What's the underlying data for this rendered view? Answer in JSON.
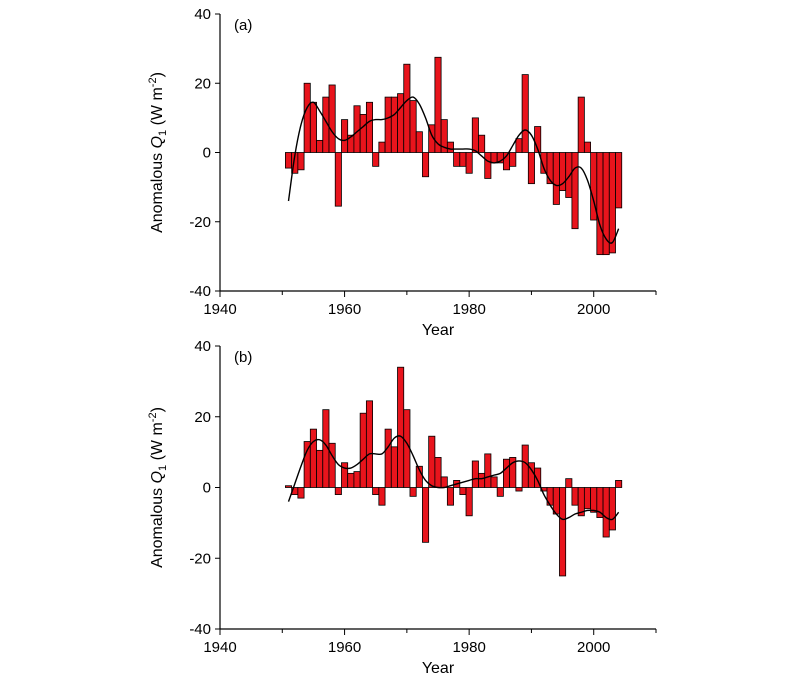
{
  "chart_data": [
    {
      "type": "bar",
      "panel_label": "(a)",
      "xlabel": "Year",
      "ylabel": "Anomalous Q₁ (W m⁻²)",
      "ylabel_parts": {
        "prefix": "Anomalous ",
        "symbol": "Q",
        "subscript": "1",
        "units_open": " (W m",
        "units_exp": "-2",
        "units_close": ")"
      },
      "xlim": [
        1940,
        2010
      ],
      "ylim": [
        -40,
        40
      ],
      "xticks": [
        1940,
        1960,
        1980,
        2000
      ],
      "yticks": [
        -40,
        -20,
        0,
        20,
        40
      ],
      "xtick_labels": [
        "1940",
        "1960",
        "1980",
        "2000"
      ],
      "ytick_labels": [
        "-40",
        "-20",
        "0",
        "20",
        "40"
      ],
      "grid": false,
      "bar_color": "#e8141c",
      "x": [
        1951,
        1952,
        1953,
        1954,
        1955,
        1956,
        1957,
        1958,
        1959,
        1960,
        1961,
        1962,
        1963,
        1964,
        1965,
        1966,
        1967,
        1968,
        1969,
        1970,
        1971,
        1972,
        1973,
        1974,
        1975,
        1976,
        1977,
        1978,
        1979,
        1980,
        1981,
        1982,
        1983,
        1984,
        1985,
        1986,
        1987,
        1988,
        1989,
        1990,
        1991,
        1992,
        1993,
        1994,
        1995,
        1996,
        1997,
        1998,
        1999,
        2000,
        2001,
        2002,
        2003,
        2004
      ],
      "values": [
        -4.5,
        -6,
        -5,
        20,
        14.5,
        3.5,
        16,
        19.5,
        -15.5,
        9.5,
        5,
        13.5,
        11,
        14.5,
        -4,
        3,
        16,
        16,
        17,
        25.5,
        15,
        6,
        -7,
        8,
        27.5,
        9.5,
        3,
        -4,
        -4,
        -6,
        10,
        5,
        -7.5,
        -3,
        -3,
        -5,
        -4,
        4,
        22.5,
        -9,
        7.5,
        -6,
        -9,
        -15,
        -11,
        -13,
        -22,
        16,
        3,
        -19.5,
        -29.5,
        -29.5,
        -29,
        -16
      ],
      "smooth_x": [
        1951,
        1952,
        1953,
        1954,
        1955,
        1956,
        1957,
        1958,
        1959,
        1960,
        1961,
        1962,
        1963,
        1964,
        1965,
        1966,
        1967,
        1968,
        1969,
        1970,
        1971,
        1972,
        1973,
        1974,
        1975,
        1976,
        1977,
        1978,
        1979,
        1980,
        1981,
        1982,
        1983,
        1984,
        1985,
        1986,
        1987,
        1988,
        1989,
        1990,
        1991,
        1992,
        1993,
        1994,
        1995,
        1996,
        1997,
        1998,
        1999,
        2000,
        2001,
        2002,
        2003,
        2004
      ],
      "smooth_y": [
        -14,
        -1,
        8,
        13,
        14.5,
        12,
        9,
        6,
        4,
        3.5,
        4.5,
        6,
        7.5,
        9,
        9.5,
        9.5,
        10,
        11,
        13,
        15,
        16,
        14,
        10,
        5,
        2.5,
        1.5,
        1,
        1,
        1,
        1,
        0.5,
        -1,
        -2.5,
        -3,
        -2.5,
        -1,
        2,
        5,
        6.5,
        5,
        1,
        -4.5,
        -8,
        -9.5,
        -9,
        -7,
        -4.5,
        -4.5,
        -8,
        -14,
        -21,
        -25,
        -26,
        -22
      ]
    },
    {
      "type": "bar",
      "panel_label": "(b)",
      "xlabel": "Year",
      "ylabel": "Anomalous Q₁ (W m⁻²)",
      "ylabel_parts": {
        "prefix": "Anomalous ",
        "symbol": "Q",
        "subscript": "1",
        "units_open": " (W m",
        "units_exp": "-2",
        "units_close": ")"
      },
      "xlim": [
        1940,
        2010
      ],
      "ylim": [
        -40,
        40
      ],
      "xticks": [
        1940,
        1960,
        1980,
        2000
      ],
      "yticks": [
        -40,
        -20,
        0,
        20,
        40
      ],
      "xtick_labels": [
        "1940",
        "1960",
        "1980",
        "2000"
      ],
      "ytick_labels": [
        "-40",
        "-20",
        "0",
        "20",
        "40"
      ],
      "grid": false,
      "bar_color": "#e8141c",
      "x": [
        1951,
        1952,
        1953,
        1954,
        1955,
        1956,
        1957,
        1958,
        1959,
        1960,
        1961,
        1962,
        1963,
        1964,
        1965,
        1966,
        1967,
        1968,
        1969,
        1970,
        1971,
        1972,
        1973,
        1974,
        1975,
        1976,
        1977,
        1978,
        1979,
        1980,
        1981,
        1982,
        1983,
        1984,
        1985,
        1986,
        1987,
        1988,
        1989,
        1990,
        1991,
        1992,
        1993,
        1994,
        1995,
        1996,
        1997,
        1998,
        1999,
        2000,
        2001,
        2002,
        2003,
        2004
      ],
      "values": [
        0.5,
        -2,
        -3,
        13,
        16.5,
        10.5,
        22,
        12.5,
        -2,
        7,
        4,
        4.5,
        21,
        24.5,
        -2,
        -5,
        16.5,
        11.5,
        34,
        22,
        -2.5,
        6,
        -15.5,
        14.5,
        8.5,
        3,
        -5,
        2,
        -2,
        -8,
        7.5,
        4,
        9.5,
        3,
        -2.5,
        8,
        8.5,
        -1,
        12,
        7,
        5.5,
        -1,
        -5,
        -7.5,
        -25,
        2.5,
        -5,
        -8,
        -6,
        -7,
        -8.5,
        -14,
        -12,
        2
      ],
      "smooth_x": [
        1951,
        1952,
        1953,
        1954,
        1955,
        1956,
        1957,
        1958,
        1959,
        1960,
        1961,
        1962,
        1963,
        1964,
        1965,
        1966,
        1967,
        1968,
        1969,
        1970,
        1971,
        1972,
        1973,
        1974,
        1975,
        1976,
        1977,
        1978,
        1979,
        1980,
        1981,
        1982,
        1983,
        1984,
        1985,
        1986,
        1987,
        1988,
        1989,
        1990,
        1991,
        1992,
        1993,
        1994,
        1995,
        1996,
        1997,
        1998,
        1999,
        2000,
        2001,
        2002,
        2003,
        2004
      ],
      "smooth_y": [
        -4,
        1,
        6,
        10.5,
        13,
        13.5,
        12,
        9,
        6.5,
        5.5,
        5.5,
        6.5,
        8,
        9.5,
        9.5,
        9.5,
        11.5,
        14,
        14.5,
        12.5,
        9,
        5,
        2,
        0.5,
        0,
        0,
        0.5,
        1,
        1.5,
        2,
        2.5,
        2.5,
        3,
        3.5,
        4,
        5.5,
        7,
        7.5,
        7,
        5,
        2,
        -2,
        -5,
        -7.5,
        -9,
        -8.5,
        -7.5,
        -7,
        -6.5,
        -6.5,
        -7,
        -8.5,
        -9,
        -7
      ]
    }
  ]
}
